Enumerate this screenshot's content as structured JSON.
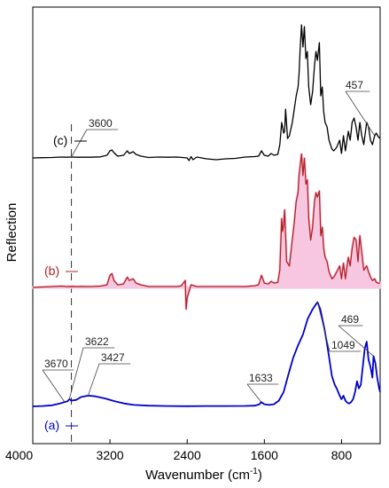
{
  "chart_data": {
    "type": "line",
    "title": "",
    "xlabel": "Wavenumber (cm",
    "xlabel_sup": "-1",
    "xlabel_close": ")",
    "ylabel": "Reflection",
    "xlim": [
      4000,
      400
    ],
    "x_reversed": true,
    "x_ticks": [
      4000,
      3200,
      2400,
      1600,
      800
    ],
    "x_tick_labels": [
      "4000",
      "3200",
      "2400",
      "1600",
      "800"
    ],
    "y_ticks_shown": false,
    "reference_line": {
      "x": 3600,
      "style": "dashed"
    },
    "series": [
      {
        "name": "(c)",
        "color": "#000000",
        "fill": "none",
        "baseline": 0,
        "points": [
          [
            4000,
            0
          ],
          [
            3900,
            0.3
          ],
          [
            3800,
            0.5
          ],
          [
            3700,
            1
          ],
          [
            3650,
            0.8
          ],
          [
            3600,
            1
          ],
          [
            3550,
            0.8
          ],
          [
            3500,
            0.9
          ],
          [
            3400,
            0.8
          ],
          [
            3300,
            1.2
          ],
          [
            3230,
            3
          ],
          [
            3200,
            8
          ],
          [
            3180,
            9
          ],
          [
            3160,
            6
          ],
          [
            3120,
            2
          ],
          [
            3060,
            3
          ],
          [
            3020,
            8
          ],
          [
            3000,
            5
          ],
          [
            2960,
            7
          ],
          [
            2930,
            4
          ],
          [
            2880,
            2
          ],
          [
            2800,
            0.5
          ],
          [
            2700,
            1
          ],
          [
            2600,
            0.8
          ],
          [
            2500,
            1
          ],
          [
            2400,
            0
          ],
          [
            2380,
            -3
          ],
          [
            2360,
            1.5
          ],
          [
            2340,
            -2
          ],
          [
            2300,
            1
          ],
          [
            2200,
            -1
          ],
          [
            2100,
            -2
          ],
          [
            2000,
            -1
          ],
          [
            1900,
            -0.5
          ],
          [
            1800,
            1
          ],
          [
            1700,
            1.5
          ],
          [
            1660,
            2
          ],
          [
            1630,
            8
          ],
          [
            1600,
            3
          ],
          [
            1560,
            2
          ],
          [
            1530,
            5
          ],
          [
            1500,
            3
          ],
          [
            1460,
            4
          ],
          [
            1440,
            15
          ],
          [
            1420,
            40
          ],
          [
            1400,
            28
          ],
          [
            1390,
            30
          ],
          [
            1380,
            55
          ],
          [
            1360,
            22
          ],
          [
            1340,
            25
          ],
          [
            1310,
            40
          ],
          [
            1290,
            55
          ],
          [
            1270,
            70
          ],
          [
            1250,
            80
          ],
          [
            1240,
            95
          ],
          [
            1230,
            120
          ],
          [
            1215,
            150
          ],
          [
            1200,
            125
          ],
          [
            1185,
            148
          ],
          [
            1170,
            112
          ],
          [
            1155,
            120
          ],
          [
            1140,
            80
          ],
          [
            1120,
            60
          ],
          [
            1100,
            75
          ],
          [
            1080,
            105
          ],
          [
            1065,
            120
          ],
          [
            1050,
            110
          ],
          [
            1030,
            130
          ],
          [
            1015,
            70
          ],
          [
            1000,
            80
          ],
          [
            985,
            52
          ],
          [
            970,
            40
          ],
          [
            950,
            35
          ],
          [
            930,
            20
          ],
          [
            900,
            10
          ],
          [
            880,
            8
          ],
          [
            850,
            12
          ],
          [
            820,
            20
          ],
          [
            800,
            5
          ],
          [
            780,
            25
          ],
          [
            760,
            8
          ],
          [
            730,
            30
          ],
          [
            710,
            20
          ],
          [
            690,
            40
          ],
          [
            670,
            45
          ],
          [
            650,
            35
          ],
          [
            630,
            20
          ],
          [
            610,
            40
          ],
          [
            590,
            25
          ],
          [
            570,
            15
          ],
          [
            540,
            40
          ],
          [
            520,
            35
          ],
          [
            500,
            20
          ],
          [
            480,
            15
          ],
          [
            457,
            25
          ],
          [
            440,
            28
          ],
          [
            420,
            24
          ],
          [
            400,
            22
          ]
        ]
      },
      {
        "name": "(b)",
        "color": "#b22222",
        "fill": "#f7c6e0",
        "baseline": 0,
        "points": [
          [
            4000,
            0
          ],
          [
            3900,
            0.5
          ],
          [
            3800,
            1
          ],
          [
            3700,
            1.5
          ],
          [
            3650,
            1
          ],
          [
            3600,
            1.2
          ],
          [
            3550,
            1
          ],
          [
            3500,
            1.1
          ],
          [
            3400,
            1
          ],
          [
            3300,
            1.5
          ],
          [
            3230,
            3
          ],
          [
            3200,
            14
          ],
          [
            3180,
            16
          ],
          [
            3160,
            8
          ],
          [
            3120,
            3
          ],
          [
            3060,
            4
          ],
          [
            3020,
            12
          ],
          [
            3000,
            8
          ],
          [
            2960,
            10
          ],
          [
            2930,
            5
          ],
          [
            2880,
            3
          ],
          [
            2800,
            1
          ],
          [
            2700,
            1
          ],
          [
            2600,
            1
          ],
          [
            2500,
            1
          ],
          [
            2460,
            2
          ],
          [
            2420,
            8
          ],
          [
            2410,
            -25
          ],
          [
            2400,
            -12
          ],
          [
            2390,
            -8
          ],
          [
            2360,
            3
          ],
          [
            2300,
            1
          ],
          [
            2200,
            1
          ],
          [
            2100,
            1
          ],
          [
            2000,
            1
          ],
          [
            1900,
            1
          ],
          [
            1800,
            1
          ],
          [
            1700,
            2
          ],
          [
            1660,
            3
          ],
          [
            1630,
            14
          ],
          [
            1600,
            5
          ],
          [
            1560,
            4
          ],
          [
            1530,
            7
          ],
          [
            1500,
            5
          ],
          [
            1460,
            6
          ],
          [
            1440,
            20
          ],
          [
            1420,
            80
          ],
          [
            1410,
            65
          ],
          [
            1400,
            72
          ],
          [
            1390,
            90
          ],
          [
            1370,
            30
          ],
          [
            1340,
            25
          ],
          [
            1310,
            55
          ],
          [
            1290,
            75
          ],
          [
            1270,
            100
          ],
          [
            1250,
            110
          ],
          [
            1240,
            130
          ],
          [
            1230,
            140
          ],
          [
            1215,
            155
          ],
          [
            1200,
            130
          ],
          [
            1185,
            150
          ],
          [
            1170,
            120
          ],
          [
            1155,
            125
          ],
          [
            1140,
            80
          ],
          [
            1120,
            55
          ],
          [
            1100,
            70
          ],
          [
            1080,
            100
          ],
          [
            1065,
            110
          ],
          [
            1050,
            105
          ],
          [
            1030,
            112
          ],
          [
            1015,
            60
          ],
          [
            1000,
            70
          ],
          [
            985,
            45
          ],
          [
            970,
            35
          ],
          [
            950,
            30
          ],
          [
            930,
            18
          ],
          [
            900,
            10
          ],
          [
            880,
            12
          ],
          [
            850,
            18
          ],
          [
            820,
            25
          ],
          [
            800,
            10
          ],
          [
            780,
            28
          ],
          [
            760,
            10
          ],
          [
            730,
            35
          ],
          [
            710,
            25
          ],
          [
            690,
            45
          ],
          [
            670,
            58
          ],
          [
            650,
            55
          ],
          [
            630,
            30
          ],
          [
            610,
            60
          ],
          [
            590,
            40
          ],
          [
            570,
            20
          ],
          [
            540,
            25
          ],
          [
            520,
            18
          ],
          [
            500,
            12
          ],
          [
            480,
            8
          ],
          [
            457,
            10
          ],
          [
            440,
            6
          ],
          [
            420,
            5
          ],
          [
            400,
            5
          ]
        ]
      },
      {
        "name": "(a)",
        "color": "#0000cc",
        "fill": "none",
        "baseline": 0,
        "points": [
          [
            4000,
            0
          ],
          [
            3900,
            0.5
          ],
          [
            3800,
            1.5
          ],
          [
            3720,
            4
          ],
          [
            3670,
            6
          ],
          [
            3640,
            7
          ],
          [
            3622,
            10
          ],
          [
            3600,
            8
          ],
          [
            3550,
            9
          ],
          [
            3500,
            13
          ],
          [
            3427,
            15
          ],
          [
            3350,
            14
          ],
          [
            3250,
            11
          ],
          [
            3150,
            7
          ],
          [
            3050,
            4
          ],
          [
            2950,
            2
          ],
          [
            2800,
            1
          ],
          [
            2600,
            0.5
          ],
          [
            2400,
            0.3
          ],
          [
            2200,
            0.5
          ],
          [
            2000,
            0.5
          ],
          [
            1800,
            0.6
          ],
          [
            1700,
            1
          ],
          [
            1650,
            3
          ],
          [
            1633,
            6
          ],
          [
            1600,
            3
          ],
          [
            1550,
            2
          ],
          [
            1500,
            3
          ],
          [
            1450,
            8
          ],
          [
            1400,
            20
          ],
          [
            1350,
            45
          ],
          [
            1300,
            68
          ],
          [
            1250,
            85
          ],
          [
            1200,
            100
          ],
          [
            1150,
            122
          ],
          [
            1100,
            135
          ],
          [
            1070,
            141
          ],
          [
            1049,
            145
          ],
          [
            1020,
            135
          ],
          [
            1000,
            122
          ],
          [
            980,
            110
          ],
          [
            960,
            95
          ],
          [
            940,
            78
          ],
          [
            920,
            60
          ],
          [
            900,
            42
          ],
          [
            870,
            30
          ],
          [
            850,
            25
          ],
          [
            820,
            15
          ],
          [
            800,
            10
          ],
          [
            780,
            15
          ],
          [
            760,
            8
          ],
          [
            740,
            5
          ],
          [
            720,
            4
          ],
          [
            700,
            6
          ],
          [
            680,
            10
          ],
          [
            660,
            20
          ],
          [
            640,
            35
          ],
          [
            620,
            25
          ],
          [
            600,
            30
          ],
          [
            560,
            80
          ],
          [
            540,
            90
          ],
          [
            520,
            65
          ],
          [
            500,
            55
          ],
          [
            480,
            40
          ],
          [
            469,
            70
          ],
          [
            450,
            60
          ],
          [
            430,
            40
          ],
          [
            410,
            25
          ],
          [
            400,
            20
          ]
        ]
      }
    ],
    "annotations": [
      {
        "label": "3600",
        "series": "(c)",
        "x": 3600
      },
      {
        "label": "457",
        "series": "(c)",
        "x": 457
      },
      {
        "label": "3670",
        "series": "(a)",
        "x": 3670
      },
      {
        "label": "3622",
        "series": "(a)",
        "x": 3622
      },
      {
        "label": "3427",
        "series": "(a)",
        "x": 3427
      },
      {
        "label": "1633",
        "series": "(a)",
        "x": 1633
      },
      {
        "label": "1049",
        "series": "(a)",
        "x": 1049
      },
      {
        "label": "469",
        "series": "(a)",
        "x": 469
      }
    ]
  }
}
